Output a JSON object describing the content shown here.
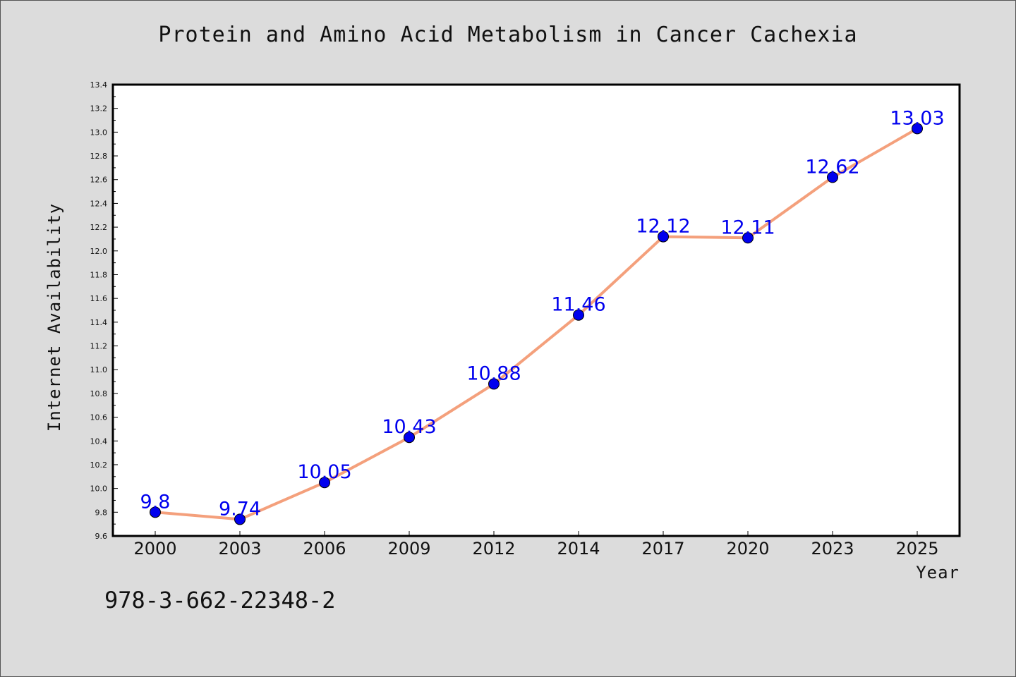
{
  "page": {
    "isbn": "978-3-662-22348-2"
  },
  "chart_data": {
    "type": "line",
    "title": "Protein and Amino Acid Metabolism in Cancer Cachexia",
    "xlabel": "Year",
    "ylabel": "Internet Availability",
    "categories": [
      "2000",
      "2003",
      "2006",
      "2009",
      "2012",
      "2014",
      "2017",
      "2020",
      "2023",
      "2025"
    ],
    "series": [
      {
        "values": [
          9.8,
          9.74,
          10.05,
          10.43,
          10.88,
          11.46,
          12.12,
          12.11,
          12.62,
          13.03
        ],
        "labels": [
          "9.8",
          "9.74",
          "10.05",
          "10.43",
          "10.88",
          "11.46",
          "12.12",
          "12.11",
          "12.62",
          "13.03"
        ]
      }
    ],
    "ylim": [
      9.6,
      13.4
    ],
    "yticks": [
      "9.6",
      "9.8",
      "10.0",
      "10.2",
      "10.4",
      "10.6",
      "10.8",
      "11.0",
      "11.2",
      "11.4",
      "11.6",
      "11.8",
      "12.0",
      "12.2",
      "12.4",
      "12.6",
      "12.8",
      "13.0",
      "13.2",
      "13.4"
    ],
    "grid": false,
    "colors": {
      "line": "#f4a07c",
      "marker": "#0000ee",
      "label": "#0000ee",
      "background": "#dcdcdc",
      "plot_background": "#ffffff"
    }
  }
}
